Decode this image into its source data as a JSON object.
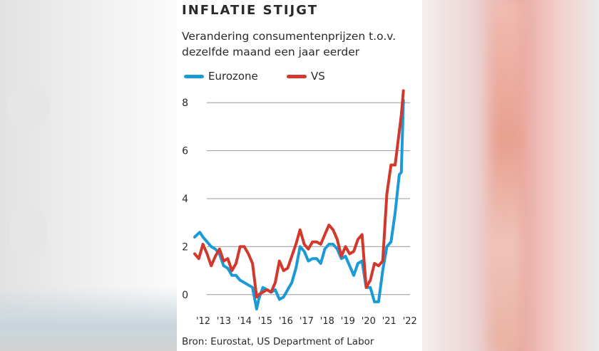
{
  "chart_data": {
    "type": "line",
    "title": "INFLATIE STIJGT",
    "subtitle": "Verandering consumentenprijzen t.o.v. dezelfde maand een jaar eerder",
    "xlabel": "",
    "ylabel": "",
    "ylim": [
      -0.6,
      8.6
    ],
    "xlim": [
      2012.0,
      2022.25
    ],
    "grid": true,
    "legend_position": "top-left",
    "y_ticks": [
      0,
      2,
      4,
      6,
      8
    ],
    "x_ticks": [
      {
        "label": "'12",
        "value": 2012.0
      },
      {
        "label": "'13",
        "value": 2013.0
      },
      {
        "label": "'14",
        "value": 2014.0
      },
      {
        "label": "'15",
        "value": 2015.0
      },
      {
        "label": "'16",
        "value": 2016.0
      },
      {
        "label": "'17",
        "value": 2017.0
      },
      {
        "label": "'18",
        "value": 2018.0
      },
      {
        "label": "'19",
        "value": 2019.0
      },
      {
        "label": "'20",
        "value": 2020.0
      },
      {
        "label": "'21",
        "value": 2021.0
      },
      {
        "label": "'22",
        "value": 2022.0
      }
    ],
    "series": [
      {
        "name": "Eurozone",
        "color": "#1b9ad6",
        "x": [
          2012.0,
          2012.25,
          2012.4,
          2012.6,
          2012.8,
          2013.0,
          2013.2,
          2013.4,
          2013.6,
          2013.8,
          2014.0,
          2014.2,
          2014.4,
          2014.6,
          2014.8,
          2015.0,
          2015.1,
          2015.3,
          2015.5,
          2015.7,
          2015.9,
          2016.1,
          2016.3,
          2016.5,
          2016.7,
          2016.9,
          2017.1,
          2017.3,
          2017.5,
          2017.7,
          2017.9,
          2018.1,
          2018.3,
          2018.5,
          2018.7,
          2018.9,
          2019.1,
          2019.3,
          2019.5,
          2019.7,
          2019.9,
          2020.1,
          2020.3,
          2020.5,
          2020.7,
          2020.9,
          2021.1,
          2021.3,
          2021.5,
          2021.7,
          2021.9,
          2022.0,
          2022.1
        ],
        "values": [
          2.4,
          2.6,
          2.4,
          2.2,
          2.0,
          1.9,
          1.7,
          1.2,
          1.1,
          0.8,
          0.8,
          0.6,
          0.5,
          0.4,
          0.3,
          -0.6,
          -0.2,
          0.3,
          0.2,
          0.1,
          0.2,
          -0.2,
          -0.1,
          0.2,
          0.5,
          1.1,
          2.0,
          1.8,
          1.4,
          1.5,
          1.5,
          1.3,
          1.9,
          2.1,
          2.1,
          1.9,
          1.5,
          1.6,
          1.2,
          0.8,
          1.3,
          1.4,
          0.3,
          0.3,
          -0.3,
          -0.3,
          1.0,
          2.0,
          2.2,
          3.4,
          5.0,
          5.1,
          8.1
        ]
      },
      {
        "name": "VS",
        "color": "#d2382b",
        "x": [
          2012.0,
          2012.2,
          2012.4,
          2012.6,
          2012.8,
          2013.0,
          2013.2,
          2013.4,
          2013.6,
          2013.8,
          2014.0,
          2014.2,
          2014.4,
          2014.6,
          2014.8,
          2015.0,
          2015.1,
          2015.3,
          2015.5,
          2015.7,
          2015.9,
          2016.1,
          2016.3,
          2016.5,
          2016.7,
          2016.9,
          2017.1,
          2017.3,
          2017.5,
          2017.7,
          2017.9,
          2018.1,
          2018.3,
          2018.5,
          2018.7,
          2018.9,
          2019.1,
          2019.3,
          2019.5,
          2019.7,
          2019.9,
          2020.1,
          2020.3,
          2020.5,
          2020.7,
          2020.9,
          2021.1,
          2021.3,
          2021.5,
          2021.7,
          2021.9,
          2022.0,
          2022.1
        ],
        "values": [
          1.7,
          1.5,
          2.1,
          1.7,
          1.2,
          1.6,
          1.9,
          1.4,
          1.5,
          1.0,
          1.3,
          2.0,
          2.0,
          1.7,
          1.3,
          -0.1,
          0.0,
          0.1,
          0.2,
          0.1,
          0.5,
          1.4,
          1.0,
          1.1,
          1.6,
          2.1,
          2.7,
          2.1,
          1.9,
          2.2,
          2.2,
          2.1,
          2.5,
          2.9,
          2.7,
          2.3,
          1.6,
          2.0,
          1.7,
          1.8,
          2.3,
          2.5,
          0.3,
          0.6,
          1.3,
          1.2,
          1.4,
          4.2,
          5.4,
          5.4,
          6.8,
          7.5,
          8.5
        ]
      }
    ],
    "source": "Bron: Eurostat, US Department of Labor"
  },
  "colors": {
    "eurozone": "#1b9ad6",
    "vs": "#d2382b",
    "grid": "#9a9a9a",
    "text": "#2a2a2a"
  }
}
